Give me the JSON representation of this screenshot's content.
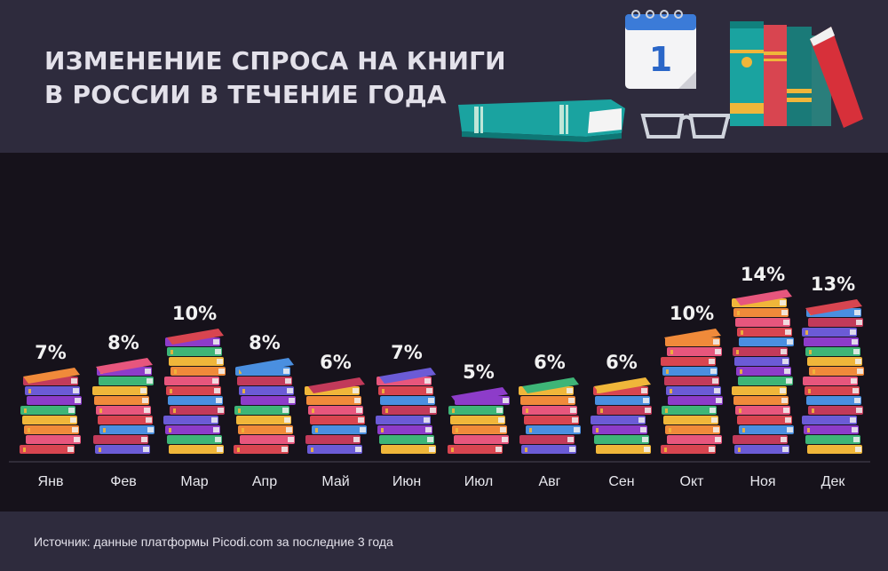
{
  "header": {
    "title_line1": "ИЗМЕНЕНИЕ СПРОСА НА КНИГИ",
    "title_line2": "В РОССИИ В ТЕЧЕНИЕ ГОДА",
    "calendar_day": "1"
  },
  "footer": {
    "source": "Источник: данные платформы Picodi.com за последние 3 года"
  },
  "colors": {
    "header_bg": "#2e2b3d",
    "chart_bg": "#16121b",
    "book_palette": [
      "#d84550",
      "#f08a3a",
      "#3eb577",
      "#6b5bd6",
      "#4a8fe0",
      "#e7567d",
      "#f0b63a",
      "#8d3cc9",
      "#c23a5a"
    ]
  },
  "icons": [
    "calendar-icon",
    "book-icon",
    "glasses-icon",
    "bookshelf-icon"
  ],
  "chart_data": {
    "type": "bar",
    "title": "ИЗМЕНЕНИЕ СПРОСА НА КНИГИ В РОССИИ В ТЕЧЕНИЕ ГОДА",
    "categories": [
      "Янв",
      "Фев",
      "Мар",
      "Апр",
      "Май",
      "Июн",
      "Июл",
      "Авг",
      "Сен",
      "Окт",
      "Ноя",
      "Дек"
    ],
    "values": [
      7,
      8,
      10,
      8,
      6,
      7,
      5,
      6,
      6,
      10,
      14,
      13
    ],
    "labels": [
      "7%",
      "8%",
      "10%",
      "8%",
      "6%",
      "7%",
      "5%",
      "6%",
      "6%",
      "10%",
      "14%",
      "13%"
    ],
    "unit": "%",
    "grid": false,
    "legend": "none"
  }
}
